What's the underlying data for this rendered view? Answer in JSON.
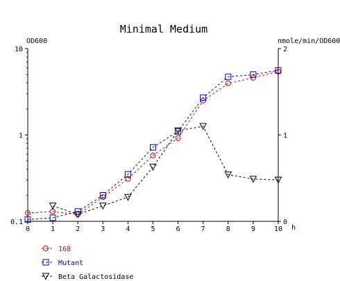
{
  "chart_data": {
    "type": "line",
    "title": "Minimal Medium",
    "xlabel": "h",
    "ylabel_left": "OD600",
    "ylabel_right": "nmole/min/OD600",
    "x": [
      0,
      1,
      2,
      3,
      4,
      5,
      6,
      7,
      8,
      9,
      10
    ],
    "x_ticks": [
      "0",
      "1",
      "2",
      "3",
      "4",
      "5",
      "6",
      "7",
      "8",
      "9",
      "10"
    ],
    "xlim": [
      0,
      10
    ],
    "y_left_scale": "log",
    "y_left_lim": [
      0.1,
      10
    ],
    "y_left_ticks": [
      "10",
      "1",
      "0.1"
    ],
    "y_right_lim": [
      0,
      2
    ],
    "y_right_ticks": [
      "2",
      "1",
      "0"
    ],
    "grid": false,
    "legend_position": "bottom-left",
    "series": [
      {
        "name": "168",
        "axis": "left",
        "color": "#dd0000",
        "marker": "circle",
        "values": [
          0.125,
          0.13,
          0.12,
          0.19,
          0.31,
          0.58,
          0.92,
          2.5,
          3.95,
          4.6,
          5.4
        ]
      },
      {
        "name": "Mutant",
        "axis": "left",
        "color": "#0000cc",
        "marker": "square",
        "values": [
          0.105,
          0.11,
          0.13,
          0.2,
          0.35,
          0.72,
          1.1,
          2.7,
          4.7,
          5.0,
          5.6
        ]
      },
      {
        "name": "Beta Galactosidase",
        "axis": "right",
        "color": "#000000",
        "marker": "triangle-down",
        "values": [
          null,
          0.18,
          0.08,
          0.18,
          0.28,
          0.63,
          1.05,
          1.1,
          0.54,
          0.49,
          0.48
        ]
      }
    ]
  }
}
